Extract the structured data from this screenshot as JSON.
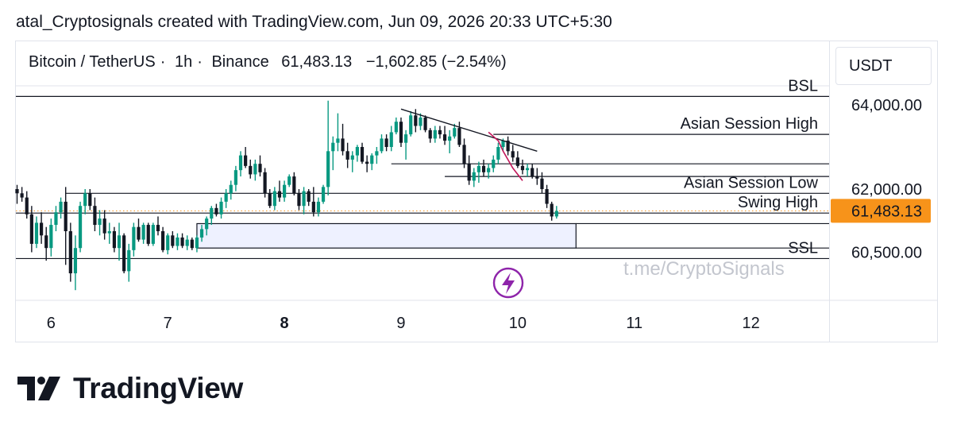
{
  "caption": "atal_Cryptosignals created with TradingView.com, Jun 09, 2026 20:33 UTC+5:30",
  "symbol": {
    "name": "Bitcoin / TetherUS",
    "interval": "1h",
    "exchange": "Binance",
    "price": "61,483.13",
    "change": "−1,602.85 (−2.54%)"
  },
  "currency": "USDT",
  "brand": {
    "name": "TradingView",
    "logo_icon": "tradingview-logo-icon"
  },
  "watermark": "t.me/CryptoSignals",
  "lightning_icon": "lightning-icon",
  "colors": {
    "bull": "#089981",
    "bear": "#131722",
    "zone_fill": "#eef1ff",
    "price_tag": "#f7931a",
    "price_line": "#f7931a",
    "path": "#c2185b",
    "lightning": "#8e24aa"
  },
  "chart_data": {
    "type": "candlestick",
    "title": "Bitcoin / TetherUS · 1h · Binance",
    "ylabel": "USDT",
    "ylim": [
      60000,
      64600
    ],
    "x_ticks": [
      {
        "label": "6",
        "bar": 7,
        "bold": false
      },
      {
        "label": "7",
        "bar": 31,
        "bold": false
      },
      {
        "label": "8",
        "bar": 55,
        "bold": true
      },
      {
        "label": "9",
        "bar": 79,
        "bold": false
      },
      {
        "label": "10",
        "bar": 103,
        "bold": false
      },
      {
        "label": "11",
        "bar": 127,
        "bold": false
      },
      {
        "label": "12",
        "bar": 151,
        "bold": false
      }
    ],
    "y_ticks": [
      {
        "label": "64,000.00",
        "value": 64000
      },
      {
        "label": "62,000.00",
        "value": 62000
      },
      {
        "label": "60,500.00",
        "value": 60500
      }
    ],
    "last_price": {
      "label": "61,483.13",
      "value": 61483.13
    },
    "ohlc": [
      [
        62000,
        62100,
        61650,
        61900
      ],
      [
        61900,
        62050,
        61700,
        61800
      ],
      [
        61800,
        61950,
        61300,
        61400
      ],
      [
        61400,
        61600,
        60500,
        60700
      ],
      [
        60700,
        61350,
        60600,
        61200
      ],
      [
        61200,
        61450,
        60700,
        60900
      ],
      [
        60900,
        61100,
        60300,
        60600
      ],
      [
        60600,
        61300,
        60400,
        61150
      ],
      [
        61150,
        61600,
        61000,
        61450
      ],
      [
        61450,
        61800,
        61300,
        61700
      ],
      [
        61700,
        62050,
        60200,
        61000
      ],
      [
        61000,
        61200,
        59800,
        60000
      ],
      [
        60000,
        60900,
        59600,
        60600
      ],
      [
        60600,
        61700,
        60500,
        61600
      ],
      [
        61600,
        62000,
        61400,
        61900
      ],
      [
        61900,
        62000,
        61500,
        61600
      ],
      [
        61600,
        61800,
        61000,
        61150
      ],
      [
        61150,
        61500,
        60900,
        61300
      ],
      [
        61300,
        61500,
        60800,
        60950
      ],
      [
        60950,
        61200,
        60700,
        61000
      ],
      [
        61000,
        61100,
        60500,
        60600
      ],
      [
        60600,
        61200,
        60300,
        60900
      ],
      [
        60900,
        60950,
        60000,
        60050
      ],
      [
        60050,
        60700,
        59800,
        60550
      ],
      [
        60550,
        61200,
        60400,
        61100
      ],
      [
        61100,
        61300,
        60750,
        60800
      ],
      [
        60800,
        61200,
        60700,
        61150
      ],
      [
        61150,
        61200,
        60650,
        60700
      ],
      [
        60700,
        61200,
        60650,
        61150
      ],
      [
        61150,
        61350,
        60900,
        61000
      ],
      [
        61000,
        61100,
        60500,
        60550
      ],
      [
        60550,
        60950,
        60450,
        60900
      ],
      [
        60900,
        61000,
        60600,
        60650
      ],
      [
        60650,
        60950,
        60550,
        60850
      ],
      [
        60850,
        60950,
        60600,
        60650
      ],
      [
        60650,
        60900,
        60550,
        60800
      ],
      [
        60800,
        60850,
        60550,
        60600
      ],
      [
        60600,
        60900,
        60500,
        60850
      ],
      [
        60850,
        61150,
        60750,
        61050
      ],
      [
        61050,
        61350,
        60900,
        61300
      ],
      [
        61300,
        61600,
        61150,
        61550
      ],
      [
        61550,
        61650,
        61350,
        61400
      ],
      [
        61400,
        61800,
        61300,
        61700
      ],
      [
        61700,
        62000,
        61550,
        61900
      ],
      [
        61900,
        62200,
        61750,
        62100
      ],
      [
        62100,
        62550,
        61950,
        62450
      ],
      [
        62450,
        62900,
        62300,
        62800
      ],
      [
        62800,
        63000,
        62500,
        62550
      ],
      [
        62550,
        62700,
        62250,
        62350
      ],
      [
        62350,
        62700,
        62200,
        62600
      ],
      [
        62600,
        62800,
        62300,
        62400
      ],
      [
        62400,
        62500,
        61800,
        61900
      ],
      [
        61900,
        62000,
        61550,
        61600
      ],
      [
        61600,
        62050,
        61500,
        61950
      ],
      [
        61950,
        62200,
        61700,
        61800
      ],
      [
        61800,
        62200,
        61700,
        62100
      ],
      [
        62100,
        62350,
        62050,
        62300
      ],
      [
        62300,
        62400,
        61850,
        61900
      ],
      [
        61900,
        62000,
        61500,
        61600
      ],
      [
        61600,
        62050,
        61400,
        61950
      ],
      [
        61950,
        62000,
        61600,
        61700
      ],
      [
        61700,
        62050,
        61350,
        61450
      ],
      [
        61450,
        61800,
        61350,
        61700
      ],
      [
        61700,
        62100,
        61650,
        62050
      ],
      [
        62050,
        64100,
        61850,
        62900
      ],
      [
        62900,
        63250,
        62450,
        63100
      ],
      [
        63100,
        63800,
        62900,
        63200
      ],
      [
        63200,
        63550,
        62800,
        62900
      ],
      [
        62900,
        63100,
        62500,
        62700
      ],
      [
        62700,
        62900,
        62400,
        62800
      ],
      [
        62800,
        63050,
        62650,
        63000
      ],
      [
        63000,
        63100,
        62600,
        62650
      ],
      [
        62650,
        62800,
        62400,
        62600
      ],
      [
        62600,
        62850,
        62450,
        62800
      ],
      [
        62800,
        63000,
        62600,
        62900
      ],
      [
        62900,
        63300,
        62850,
        63200
      ],
      [
        63200,
        63300,
        62900,
        63000
      ],
      [
        63000,
        63500,
        62900,
        63350
      ],
      [
        63350,
        63700,
        63300,
        63600
      ],
      [
        63600,
        63700,
        63000,
        63100
      ],
      [
        63100,
        63400,
        62700,
        63300
      ],
      [
        63300,
        63850,
        63250,
        63750
      ],
      [
        63750,
        63900,
        63350,
        63500
      ],
      [
        63500,
        63800,
        63400,
        63700
      ],
      [
        63700,
        63750,
        63350,
        63400
      ],
      [
        63400,
        63450,
        63100,
        63200
      ],
      [
        63200,
        63500,
        63100,
        63400
      ],
      [
        63400,
        63500,
        63200,
        63300
      ],
      [
        63300,
        63500,
        63050,
        63150
      ],
      [
        63150,
        63400,
        62850,
        63250
      ],
      [
        63250,
        63550,
        63200,
        63450
      ],
      [
        63450,
        63600,
        63000,
        63050
      ],
      [
        63050,
        63200,
        62500,
        62600
      ],
      [
        62600,
        62800,
        62100,
        62200
      ],
      [
        62200,
        62500,
        62050,
        62400
      ],
      [
        62400,
        62650,
        62150,
        62550
      ],
      [
        62550,
        62700,
        62300,
        62400
      ],
      [
        62400,
        62600,
        62250,
        62500
      ],
      [
        62500,
        62800,
        62400,
        62700
      ],
      [
        62700,
        63100,
        62600,
        63000
      ],
      [
        63000,
        63200,
        62900,
        63150
      ],
      [
        63150,
        63250,
        62800,
        62900
      ],
      [
        62900,
        63050,
        62650,
        62750
      ],
      [
        62750,
        62900,
        62500,
        62550
      ],
      [
        62550,
        62700,
        62350,
        62450
      ],
      [
        62450,
        62600,
        62300,
        62500
      ],
      [
        62500,
        62600,
        62250,
        62300
      ],
      [
        62300,
        62500,
        62100,
        62250
      ],
      [
        62250,
        62400,
        61900,
        62000
      ],
      [
        62000,
        62100,
        61550,
        61650
      ],
      [
        61650,
        61700,
        61250,
        61350
      ],
      [
        61350,
        61600,
        61300,
        61480
      ]
    ],
    "levels": [
      {
        "label": "BSL",
        "value": 64200,
        "from_bar": 0,
        "show_label": true
      },
      {
        "label": "Asian Session High",
        "value": 63300,
        "from_bar": 98,
        "show_label": true
      },
      {
        "label": "",
        "value": 62600,
        "from_bar": 77,
        "show_label": false
      },
      {
        "label": "",
        "value": 62300,
        "from_bar": 88,
        "show_label": false
      },
      {
        "label": "Asian Session Low",
        "value": 61900,
        "from_bar": 10,
        "show_label": true
      },
      {
        "label": "Swing High",
        "value": 61430,
        "from_bar": 0,
        "show_label": true
      },
      {
        "label": "SSL",
        "value": 60350,
        "from_bar": 0,
        "show_label": true
      }
    ],
    "zone": {
      "from_bar": 37,
      "to_bar": 115,
      "top": 61180,
      "bottom": 60600,
      "extend_top": 61180,
      "extend_bottom": 60600
    },
    "trendline": {
      "from_bar": 79,
      "from_value": 63900,
      "to_bar": 107,
      "to_value": 62900
    },
    "projection_path": [
      [
        97,
        63350
      ],
      [
        99,
        63150
      ],
      [
        100,
        62900
      ],
      [
        102,
        62500
      ],
      [
        104,
        62200
      ]
    ]
  }
}
